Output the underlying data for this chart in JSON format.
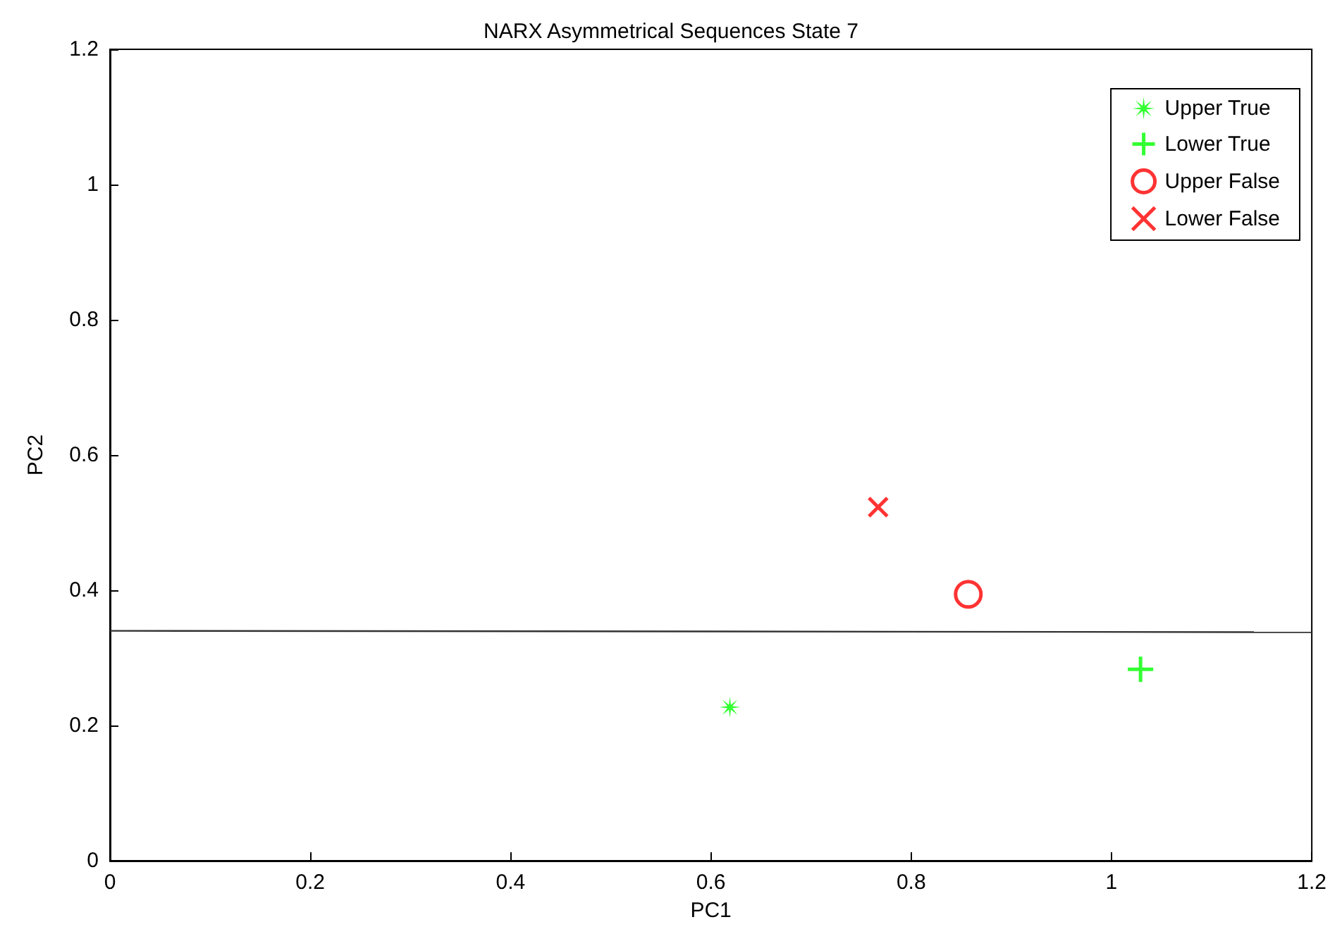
{
  "chart_data": {
    "type": "scatter",
    "title": "NARX Asymmetrical Sequences State 7",
    "xlabel": "PC1",
    "ylabel": "PC2",
    "xlim": [
      0,
      1.2
    ],
    "xticks": [
      0,
      0.2,
      0.4,
      0.6,
      0.8,
      1,
      1.2
    ],
    "ylim": [
      0,
      1.2
    ],
    "yticks": [
      0,
      0.2,
      0.4,
      0.6,
      0.8,
      1,
      1.2
    ],
    "grid": false,
    "legend": "top right",
    "series": [
      {
        "name": "Upper True",
        "color": "#00ff00",
        "marker": "star",
        "x": [
          0.619
        ],
        "values": [
          0.227
        ]
      },
      {
        "name": "Lower True",
        "color": "#00ff00",
        "marker": "cross",
        "x": [
          1.029
        ],
        "values": [
          0.283
        ]
      },
      {
        "name": "Upper False",
        "color": "#ff0000",
        "marker": "circle",
        "x": [
          0.857
        ],
        "values": [
          0.394
        ]
      },
      {
        "name": "Lower False",
        "color": "#ff0000",
        "marker": "x",
        "x": [
          0.767
        ],
        "values": [
          0.523
        ]
      },
      {
        "type": "line",
        "color": "#333333",
        "marker": "none",
        "line_style": "solid",
        "x": [
          0,
          1.2
        ],
        "values": [
          0.34,
          0.338
        ]
      }
    ]
  }
}
